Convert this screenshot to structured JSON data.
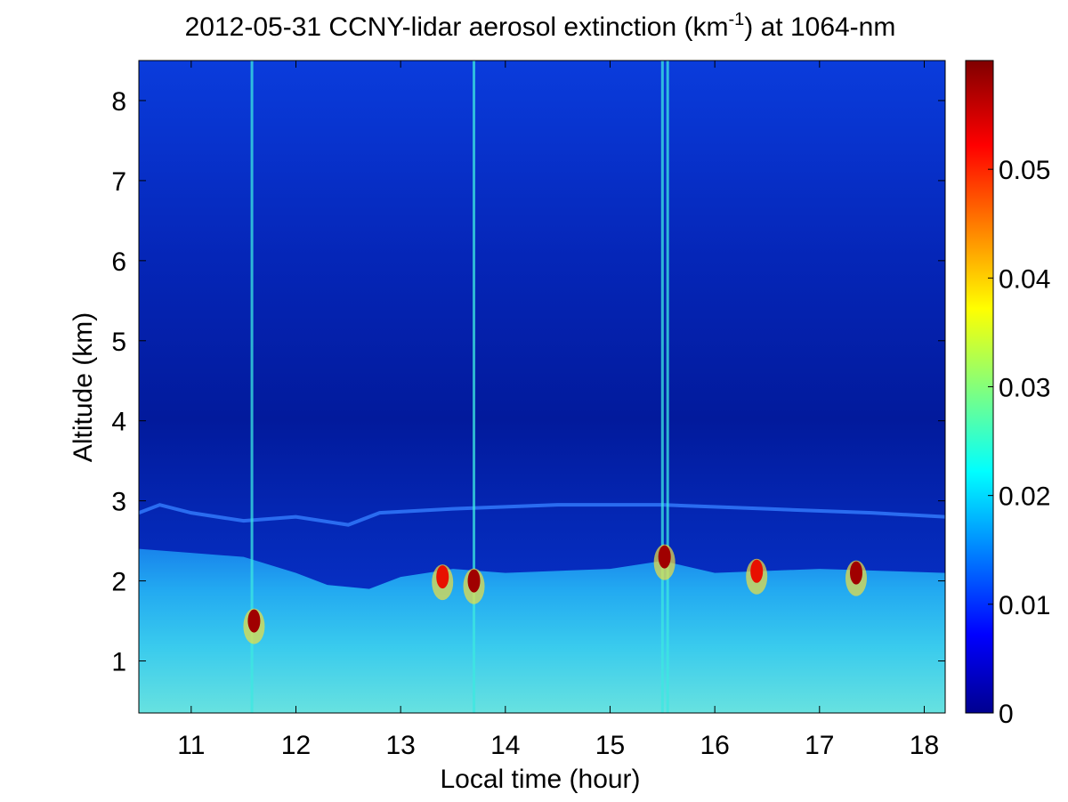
{
  "chart_data": {
    "type": "heatmap",
    "title": "2012-05-31 CCNY-lidar aerosol extinction (km",
    "title_superscript": "-1",
    "title_suffix": ") at 1064-nm",
    "xlabel": "Local time (hour)",
    "ylabel": "Altitude (km)",
    "xlim": [
      10.5,
      18.2
    ],
    "ylim": [
      0.35,
      8.5
    ],
    "x_ticks": [
      "11",
      "12",
      "13",
      "14",
      "15",
      "16",
      "17",
      "18"
    ],
    "y_ticks": [
      "1",
      "2",
      "3",
      "4",
      "5",
      "6",
      "7",
      "8"
    ],
    "colorbar": {
      "colormap": "jet",
      "range": [
        0,
        0.06
      ],
      "ticks": [
        "0",
        "0.01",
        "0.02",
        "0.03",
        "0.04",
        "0.05"
      ]
    },
    "features": {
      "residual_layer_top_km": [
        [
          10.5,
          2.85
        ],
        [
          10.7,
          2.95
        ],
        [
          11.0,
          2.85
        ],
        [
          11.5,
          2.75
        ],
        [
          12.0,
          2.8
        ],
        [
          12.5,
          2.7
        ],
        [
          12.8,
          2.85
        ],
        [
          13.5,
          2.9
        ],
        [
          14.5,
          2.95
        ],
        [
          15.5,
          2.95
        ],
        [
          16.5,
          2.9
        ],
        [
          17.5,
          2.85
        ],
        [
          18.2,
          2.8
        ]
      ],
      "boundary_layer_top_km": [
        [
          10.5,
          2.4
        ],
        [
          11.0,
          2.35
        ],
        [
          11.5,
          2.3
        ],
        [
          12.0,
          2.1
        ],
        [
          12.3,
          1.95
        ],
        [
          12.7,
          1.9
        ],
        [
          13.0,
          2.05
        ],
        [
          13.5,
          2.15
        ],
        [
          14.0,
          2.1
        ],
        [
          15.0,
          2.15
        ],
        [
          15.5,
          2.25
        ],
        [
          16.0,
          2.1
        ],
        [
          17.0,
          2.15
        ],
        [
          18.2,
          2.1
        ]
      ],
      "high_extinction_patches": [
        {
          "x": 11.6,
          "y": 1.5,
          "value": 0.06
        },
        {
          "x": 13.4,
          "y": 2.05,
          "value": 0.05
        },
        {
          "x": 13.7,
          "y": 2.0,
          "value": 0.06
        },
        {
          "x": 15.52,
          "y": 2.3,
          "value": 0.06
        },
        {
          "x": 16.4,
          "y": 2.12,
          "value": 0.05
        },
        {
          "x": 17.35,
          "y": 2.1,
          "value": 0.06
        }
      ],
      "vertical_streaks_hours": [
        11.58,
        13.7,
        15.5,
        15.55
      ]
    }
  }
}
